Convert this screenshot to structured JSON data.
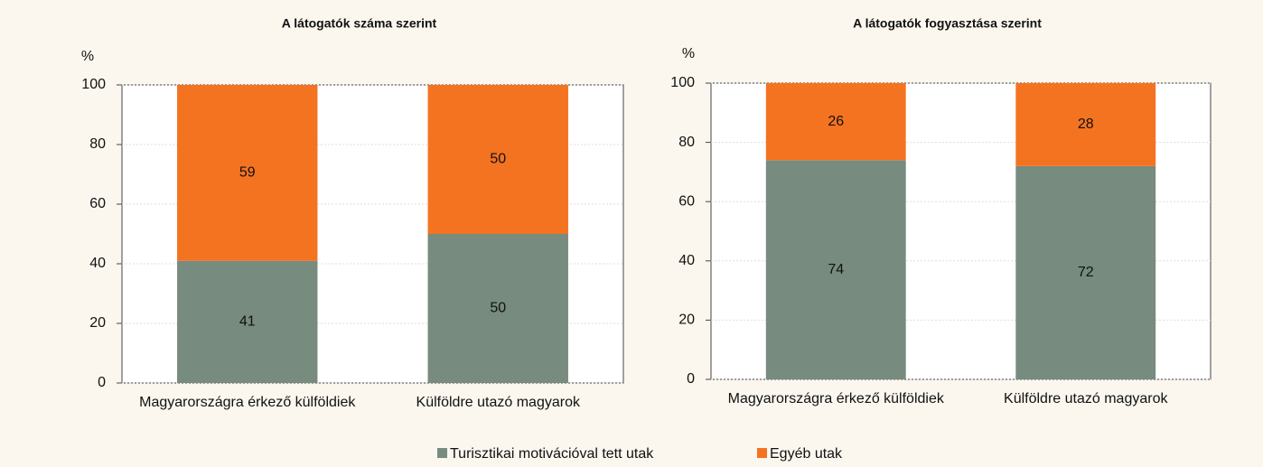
{
  "chart_data": [
    {
      "type": "stacked_bar",
      "title": "A látogatók száma szerint",
      "ylabel": "%",
      "categories": [
        "Magyarországra érkező külföldiek",
        "Külföldre utazó magyarok"
      ],
      "series": [
        {
          "name": "Turisztikai motivációval tett utak",
          "color": "#778b7f",
          "values": [
            41,
            50
          ]
        },
        {
          "name": "Egyéb utak",
          "color": "#f47321",
          "values": [
            59,
            50
          ]
        }
      ],
      "ylim": [
        0,
        100
      ],
      "yticks": [
        0,
        20,
        40,
        60,
        80,
        100
      ],
      "grid": true
    },
    {
      "type": "stacked_bar",
      "title": "A látogatók fogyasztása szerint",
      "ylabel": "%",
      "categories": [
        "Magyarországra érkező külföldiek",
        "Külföldre utazó magyarok"
      ],
      "series": [
        {
          "name": "Turisztikai motivációval tett utak",
          "color": "#778b7f",
          "values": [
            74,
            72
          ]
        },
        {
          "name": "Egyéb utak",
          "color": "#f47321",
          "values": [
            26,
            28
          ]
        }
      ],
      "ylim": [
        0,
        100
      ],
      "yticks": [
        0,
        20,
        40,
        60,
        80,
        100
      ],
      "grid": true
    }
  ]
}
